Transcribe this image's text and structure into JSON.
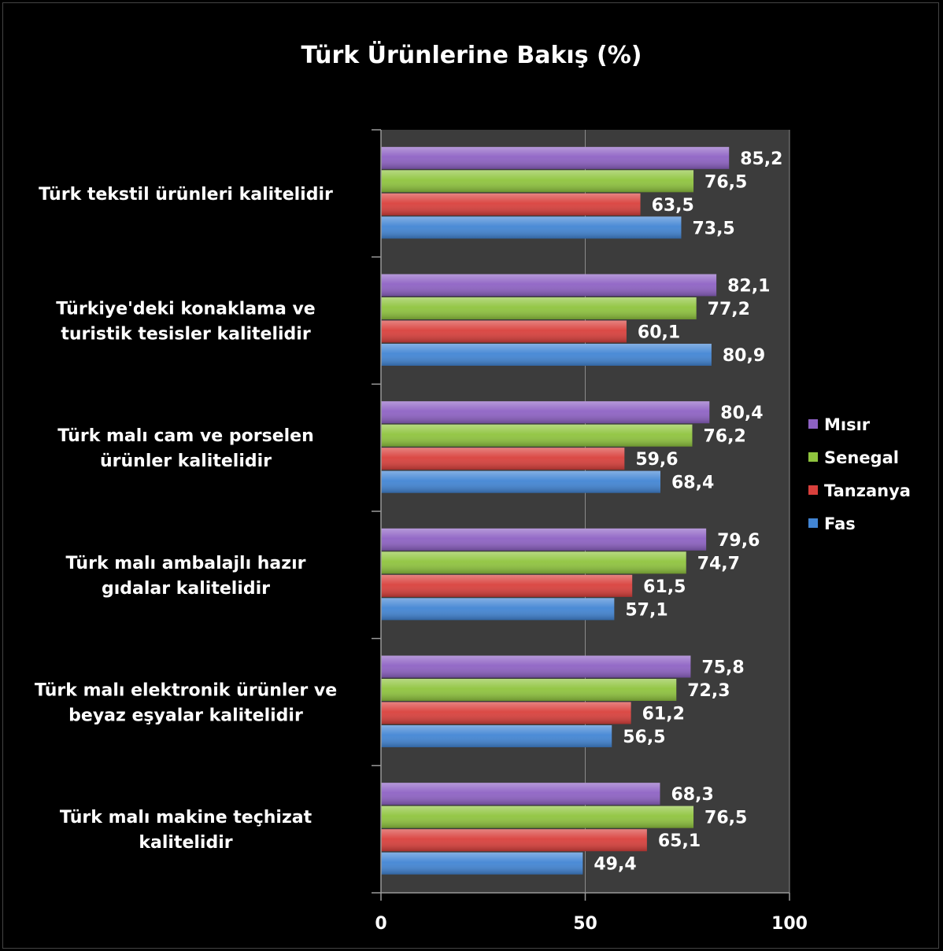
{
  "chart_data": {
    "type": "bar",
    "orientation": "horizontal",
    "title": "Türk Ürünlerine Bakış (%)",
    "categories": [
      [
        "Türk tekstil ürünleri kalitelidir"
      ],
      [
        "Türkiye'deki konaklama ve",
        "turistik tesisler kalitelidir"
      ],
      [
        "Türk malı cam ve porselen",
        "ürünler kalitelidir"
      ],
      [
        "Türk malı ambalajlı hazır",
        "gıdalar kalitelidir"
      ],
      [
        "Türk malı elektronik ürünler ve",
        "beyaz eşyalar kalitelidir"
      ],
      [
        "Türk malı makine teçhizat",
        "kalitelidir"
      ]
    ],
    "series": [
      {
        "name": "Mısır",
        "color": "#8e62c4",
        "values": [
          85.2,
          82.1,
          80.4,
          79.6,
          75.8,
          68.3
        ],
        "labels": [
          "85,2",
          "82,1",
          "80,4",
          "79,6",
          "75,8",
          "68,3"
        ]
      },
      {
        "name": "Senegal",
        "color": "#8fc43e",
        "values": [
          76.5,
          77.2,
          76.2,
          74.7,
          72.3,
          76.5
        ],
        "labels": [
          "76,5",
          "77,2",
          "76,2",
          "74,7",
          "72,3",
          "76,5"
        ]
      },
      {
        "name": "Tanzanya",
        "color": "#d9403c",
        "values": [
          63.5,
          60.1,
          59.6,
          61.5,
          61.2,
          65.1
        ],
        "labels": [
          "63,5",
          "60,1",
          "59,6",
          "61,5",
          "61,2",
          "65,1"
        ]
      },
      {
        "name": "Fas",
        "color": "#4285d4",
        "values": [
          73.5,
          80.9,
          68.4,
          57.1,
          56.5,
          49.4
        ],
        "labels": [
          "73,5",
          "80,9",
          "68,4",
          "57,1",
          "56,5",
          "49,4"
        ]
      }
    ],
    "xlim": [
      0,
      100
    ],
    "xticks": [
      0,
      50,
      100
    ],
    "grid": true,
    "legend": "right",
    "plot_background": "#3c3c3c",
    "background": "#000000"
  }
}
